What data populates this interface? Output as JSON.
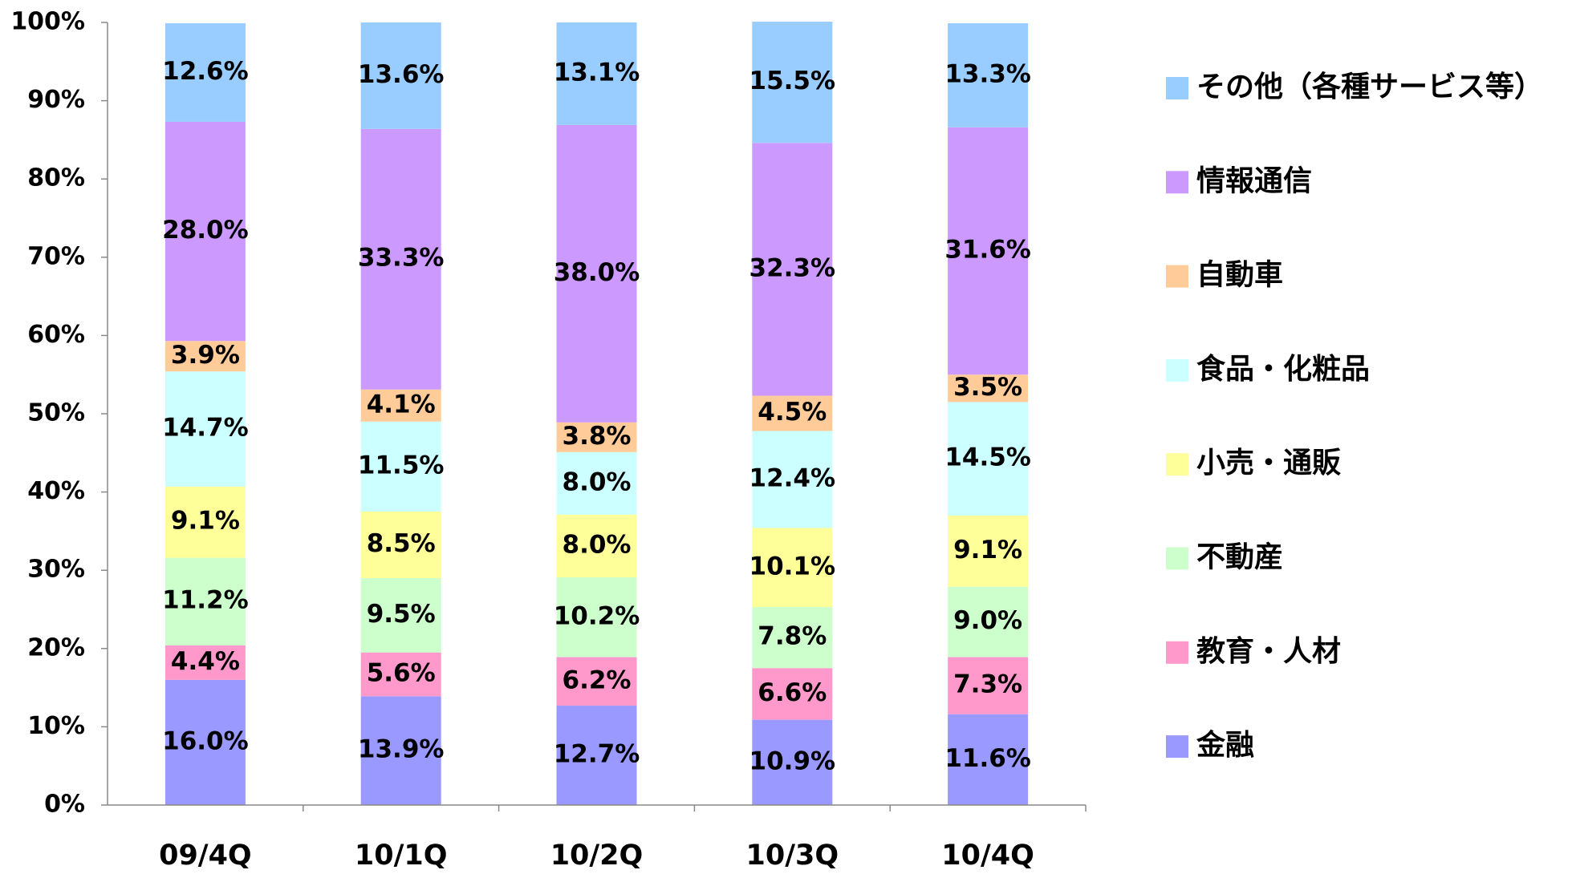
{
  "chart_data": {
    "type": "stacked_bar",
    "categories": [
      "09/4Q",
      "10/1Q",
      "10/2Q",
      "10/3Q",
      "10/4Q"
    ],
    "series": [
      {
        "name": "金融",
        "color": "#9999ff",
        "values": [
          16.0,
          13.9,
          12.7,
          10.9,
          11.6
        ],
        "value_labels": [
          "16.0%",
          "13.9%",
          "12.7%",
          "10.9%",
          "11.6%"
        ]
      },
      {
        "name": "教育・人材",
        "color": "#ff99cc",
        "values": [
          4.4,
          5.6,
          6.2,
          6.6,
          7.3
        ],
        "value_labels": [
          "4.4%",
          "5.6%",
          "6.2%",
          "6.6%",
          "7.3%"
        ]
      },
      {
        "name": "不動産",
        "color": "#ccffcc",
        "values": [
          11.2,
          9.5,
          10.2,
          7.8,
          9.0
        ],
        "value_labels": [
          "11.2%",
          "9.5%",
          "10.2%",
          "7.8%",
          "9.0%"
        ]
      },
      {
        "name": "小売・通販",
        "color": "#ffff99",
        "values": [
          9.1,
          8.5,
          8.0,
          10.1,
          9.1
        ],
        "value_labels": [
          "9.1%",
          "8.5%",
          "8.0%",
          "10.1%",
          "9.1%"
        ]
      },
      {
        "name": "食品・化粧品",
        "color": "#ccffff",
        "values": [
          14.7,
          11.5,
          8.0,
          12.4,
          14.5
        ],
        "value_labels": [
          "14.7%",
          "11.5%",
          "8.0%",
          "12.4%",
          "14.5%"
        ]
      },
      {
        "name": "自動車",
        "color": "#ffcc99",
        "values": [
          3.9,
          4.1,
          3.8,
          4.5,
          3.5
        ],
        "value_labels": [
          "3.9%",
          "4.1%",
          "3.8%",
          "4.5%",
          "3.5%"
        ]
      },
      {
        "name": "情報通信",
        "color": "#cc99ff",
        "values": [
          28.0,
          33.3,
          38.0,
          32.3,
          31.6
        ],
        "value_labels": [
          "28.0%",
          "33.3%",
          "38.0%",
          "32.3%",
          "31.6%"
        ]
      },
      {
        "name": "その他（各種サービス等）",
        "color": "#99ccff",
        "values": [
          12.6,
          13.6,
          13.1,
          15.5,
          13.3
        ],
        "value_labels": [
          "12.6%",
          "13.6%",
          "13.1%",
          "15.5%",
          "13.3%"
        ]
      }
    ],
    "ylim": [
      0,
      100
    ],
    "yticks": [
      {
        "value": 0,
        "label": "0%"
      },
      {
        "value": 10,
        "label": "10%"
      },
      {
        "value": 20,
        "label": "20%"
      },
      {
        "value": 30,
        "label": "30%"
      },
      {
        "value": 40,
        "label": "40%"
      },
      {
        "value": 50,
        "label": "50%"
      },
      {
        "value": 60,
        "label": "60%"
      },
      {
        "value": 70,
        "label": "70%"
      },
      {
        "value": 80,
        "label": "80%"
      },
      {
        "value": 90,
        "label": "90%"
      },
      {
        "value": 100,
        "label": "100%"
      }
    ],
    "legend": "right",
    "grid": false
  }
}
